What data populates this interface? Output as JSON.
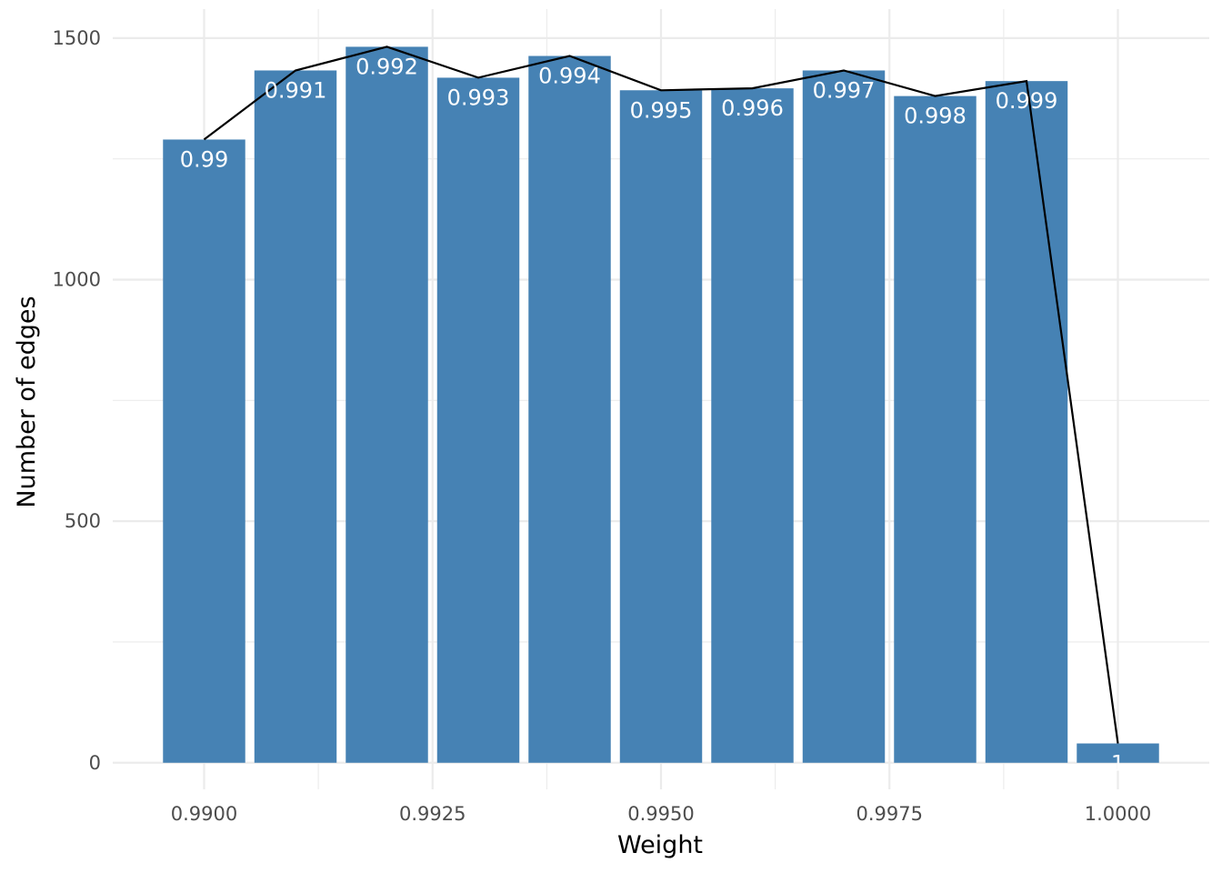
{
  "chart_data": {
    "type": "bar",
    "title": "",
    "xlabel": "Weight",
    "ylabel": "Number of edges",
    "x": [
      0.99,
      0.991,
      0.992,
      0.993,
      0.994,
      0.995,
      0.996,
      0.997,
      0.998,
      0.999,
      1.0
    ],
    "values": [
      1290,
      1433,
      1482,
      1418,
      1463,
      1392,
      1396,
      1433,
      1380,
      1411,
      40
    ],
    "bar_labels": [
      "0.99",
      "0.991",
      "0.992",
      "0.993",
      "0.994",
      "0.995",
      "0.996",
      "0.997",
      "0.998",
      "0.999",
      "1"
    ],
    "line_overlay": true,
    "xlim": [
      0.989,
      1.001
    ],
    "ylim": [
      -55,
      1560
    ],
    "x_ticks": [
      0.99,
      0.9925,
      0.995,
      0.9975,
      1.0
    ],
    "x_tick_labels": [
      "0.9900",
      "0.9925",
      "0.9950",
      "0.9975",
      "1.0000"
    ],
    "y_ticks": [
      0,
      500,
      1000,
      1500
    ],
    "y_tick_labels": [
      "0",
      "500",
      "1000",
      "1500"
    ],
    "grid": true,
    "legend": "none",
    "colors": {
      "bar": "#4682b4",
      "line": "#000000",
      "grid": "#ebebeb",
      "bar_label": "#ffffff"
    }
  }
}
